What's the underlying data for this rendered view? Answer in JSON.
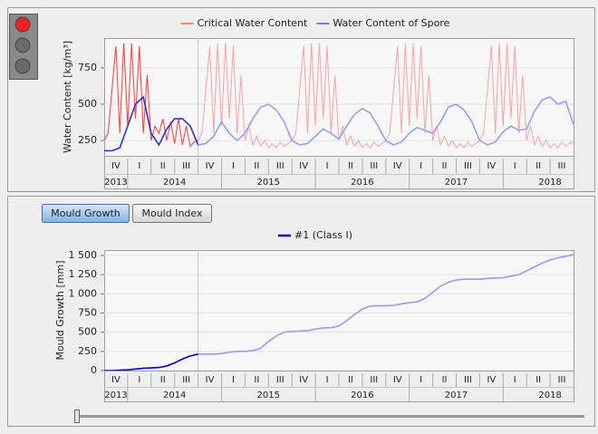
{
  "buttons": [
    {
      "label": "Mould Growth"
    },
    {
      "label": "Mould Index"
    }
  ],
  "chart_data": [
    {
      "type": "line",
      "y_label": "Water Content [kg/m³]",
      "xlim": [
        0,
        60
      ],
      "ylim": [
        145,
        955
      ],
      "yticks": [
        250,
        500,
        750
      ],
      "grid": true,
      "current_x": 12,
      "xticks": [
        {
          "value": 1.5,
          "label": "IV"
        },
        {
          "value": 4.5,
          "label": "I"
        },
        {
          "value": 7.5,
          "label": "II"
        },
        {
          "value": 10.5,
          "label": "III"
        },
        {
          "value": 13.5,
          "label": "IV"
        },
        {
          "value": 16.5,
          "label": "I"
        },
        {
          "value": 19.5,
          "label": "II"
        },
        {
          "value": 22.5,
          "label": "III"
        },
        {
          "value": 25.5,
          "label": "IV"
        },
        {
          "value": 28.5,
          "label": "I"
        },
        {
          "value": 31.5,
          "label": "II"
        },
        {
          "value": 34.5,
          "label": "III"
        },
        {
          "value": 37.5,
          "label": "IV"
        },
        {
          "value": 40.5,
          "label": "I"
        },
        {
          "value": 43.5,
          "label": "II"
        },
        {
          "value": 46.5,
          "label": "III"
        },
        {
          "value": 49.5,
          "label": "IV"
        },
        {
          "value": 52.5,
          "label": "I"
        },
        {
          "value": 55.5,
          "label": "II"
        },
        {
          "value": 58.5,
          "label": "III"
        }
      ],
      "x2ticks": [
        {
          "value": 1.5,
          "label": "2013"
        },
        {
          "value": 9,
          "label": "2014"
        },
        {
          "value": 21,
          "label": "2015"
        },
        {
          "value": 33,
          "label": "2016"
        },
        {
          "value": 45,
          "label": "2017"
        },
        {
          "value": 57,
          "label": "2018"
        }
      ],
      "series": [
        {
          "name": "Critical Water Content",
          "color": "#ff3b3b",
          "faded_color": "#f5a5a5",
          "x": [
            0,
            0.5,
            1,
            1.5,
            2,
            2.5,
            3,
            3.5,
            4,
            4.5,
            5,
            5.5,
            6,
            6.5,
            7,
            7.5,
            8,
            8.5,
            9,
            9.5,
            10,
            10.5,
            11,
            11.5,
            12,
            12.5,
            13,
            13.5,
            14,
            14.5,
            15,
            15.5,
            16,
            16.5,
            17,
            17.5,
            18,
            18.5,
            19,
            19.5,
            20,
            20.5,
            21,
            21.5,
            22,
            22.5,
            23,
            23.5,
            24,
            24.5,
            25,
            25.5,
            26,
            26.5,
            27,
            27.5,
            28,
            28.5,
            29,
            29.5,
            30,
            30.5,
            31,
            31.5,
            32,
            32.5,
            33,
            33.5,
            34,
            34.5,
            35,
            35.5,
            36,
            36.5,
            37,
            37.5,
            38,
            38.5,
            39,
            39.5,
            40,
            40.5,
            41,
            41.5,
            42,
            42.5,
            43,
            43.5,
            44,
            44.5,
            45,
            45.5,
            46,
            46.5,
            47,
            47.5,
            48,
            48.5,
            49,
            49.5,
            50,
            50.5,
            51,
            51.5,
            52,
            52.5,
            53,
            53.5,
            54,
            54.5,
            55,
            55.5,
            56,
            56.5,
            57,
            57.5,
            58,
            58.5,
            59,
            59.5,
            60
          ],
          "values": [
            250,
            300,
            600,
            900,
            300,
            920,
            350,
            920,
            400,
            900,
            300,
            700,
            250,
            350,
            300,
            400,
            250,
            380,
            230,
            400,
            220,
            350,
            210,
            240,
            250,
            300,
            600,
            900,
            300,
            920,
            350,
            920,
            400,
            900,
            300,
            700,
            250,
            350,
            220,
            280,
            210,
            250,
            200,
            230,
            200,
            240,
            210,
            230,
            250,
            300,
            600,
            900,
            300,
            920,
            350,
            920,
            400,
            900,
            300,
            700,
            250,
            350,
            220,
            280,
            210,
            250,
            200,
            230,
            200,
            240,
            210,
            230,
            250,
            300,
            600,
            900,
            300,
            920,
            350,
            920,
            400,
            900,
            300,
            700,
            250,
            350,
            220,
            280,
            210,
            250,
            200,
            230,
            200,
            240,
            210,
            230,
            250,
            300,
            600,
            900,
            300,
            920,
            350,
            920,
            400,
            900,
            300,
            700,
            250,
            350,
            220,
            280,
            210,
            250,
            200,
            230,
            200,
            240,
            210,
            230,
            240
          ]
        },
        {
          "name": "Water Content of Spore",
          "color": "#3030cc",
          "faded_color": "#9d9df0",
          "x": [
            0,
            1,
            2,
            3,
            4,
            5,
            6,
            7,
            8,
            9,
            10,
            11,
            12,
            13,
            14,
            15,
            16,
            17,
            18,
            19,
            20,
            21,
            22,
            23,
            24,
            25,
            26,
            27,
            28,
            29,
            30,
            31,
            32,
            33,
            34,
            35,
            36,
            37,
            38,
            39,
            40,
            41,
            42,
            43,
            44,
            45,
            46,
            47,
            48,
            49,
            50,
            51,
            52,
            53,
            54,
            55,
            56,
            57,
            58,
            59,
            60
          ],
          "values": [
            180,
            180,
            200,
            350,
            500,
            550,
            300,
            220,
            330,
            400,
            400,
            350,
            220,
            230,
            280,
            380,
            300,
            250,
            300,
            400,
            480,
            500,
            460,
            380,
            250,
            220,
            230,
            280,
            330,
            300,
            260,
            350,
            430,
            470,
            440,
            350,
            250,
            220,
            240,
            300,
            340,
            320,
            300,
            380,
            480,
            500,
            460,
            380,
            250,
            220,
            240,
            310,
            350,
            320,
            330,
            450,
            530,
            550,
            500,
            520,
            360
          ]
        }
      ]
    },
    {
      "type": "line",
      "y_label": "Mould Growth [mm]",
      "xlim": [
        0,
        60
      ],
      "ylim": [
        0,
        1570
      ],
      "yticks": [
        0,
        250,
        500,
        750,
        {
          "value": 1000,
          "label": "1 000"
        },
        {
          "value": 1250,
          "label": "1 250"
        },
        {
          "value": 1500,
          "label": "1 500"
        }
      ],
      "grid": true,
      "current_x": 12,
      "xticks": [
        {
          "value": 1.5,
          "label": "IV"
        },
        {
          "value": 4.5,
          "label": "I"
        },
        {
          "value": 7.5,
          "label": "II"
        },
        {
          "value": 10.5,
          "label": "III"
        },
        {
          "value": 13.5,
          "label": "IV"
        },
        {
          "value": 16.5,
          "label": "I"
        },
        {
          "value": 19.5,
          "label": "II"
        },
        {
          "value": 22.5,
          "label": "III"
        },
        {
          "value": 25.5,
          "label": "IV"
        },
        {
          "value": 28.5,
          "label": "I"
        },
        {
          "value": 31.5,
          "label": "II"
        },
        {
          "value": 34.5,
          "label": "III"
        },
        {
          "value": 37.5,
          "label": "IV"
        },
        {
          "value": 40.5,
          "label": "I"
        },
        {
          "value": 43.5,
          "label": "II"
        },
        {
          "value": 46.5,
          "label": "III"
        },
        {
          "value": 49.5,
          "label": "IV"
        },
        {
          "value": 52.5,
          "label": "I"
        },
        {
          "value": 55.5,
          "label": "II"
        },
        {
          "value": 58.5,
          "label": "III"
        }
      ],
      "x2ticks": [
        {
          "value": 1.5,
          "label": "2013"
        },
        {
          "value": 9,
          "label": "2014"
        },
        {
          "value": 21,
          "label": "2015"
        },
        {
          "value": 33,
          "label": "2016"
        },
        {
          "value": 45,
          "label": "2017"
        },
        {
          "value": 57,
          "label": "2018"
        }
      ],
      "series": [
        {
          "name": "#1 (Class I)",
          "color": "#0000bb",
          "faded_color": "#9a9af0",
          "x": [
            0,
            1,
            2,
            3,
            4,
            5,
            6,
            7,
            8,
            9,
            10,
            11,
            12,
            13,
            14,
            15,
            16,
            17,
            18,
            19,
            20,
            21,
            22,
            23,
            24,
            25,
            26,
            27,
            28,
            29,
            30,
            31,
            32,
            33,
            34,
            35,
            36,
            37,
            38,
            39,
            40,
            41,
            42,
            43,
            44,
            45,
            46,
            47,
            48,
            49,
            50,
            51,
            52,
            53,
            54,
            55,
            56,
            57,
            58,
            59,
            60
          ],
          "values": [
            0,
            0,
            5,
            10,
            20,
            30,
            35,
            40,
            60,
            100,
            150,
            190,
            215,
            215,
            215,
            220,
            240,
            250,
            250,
            260,
            290,
            380,
            450,
            500,
            510,
            515,
            520,
            540,
            555,
            560,
            580,
            650,
            730,
            800,
            840,
            845,
            845,
            850,
            870,
            885,
            895,
            940,
            1020,
            1100,
            1150,
            1180,
            1190,
            1190,
            1190,
            1200,
            1205,
            1210,
            1230,
            1250,
            1300,
            1350,
            1400,
            1440,
            1470,
            1490,
            1510
          ]
        }
      ]
    }
  ]
}
